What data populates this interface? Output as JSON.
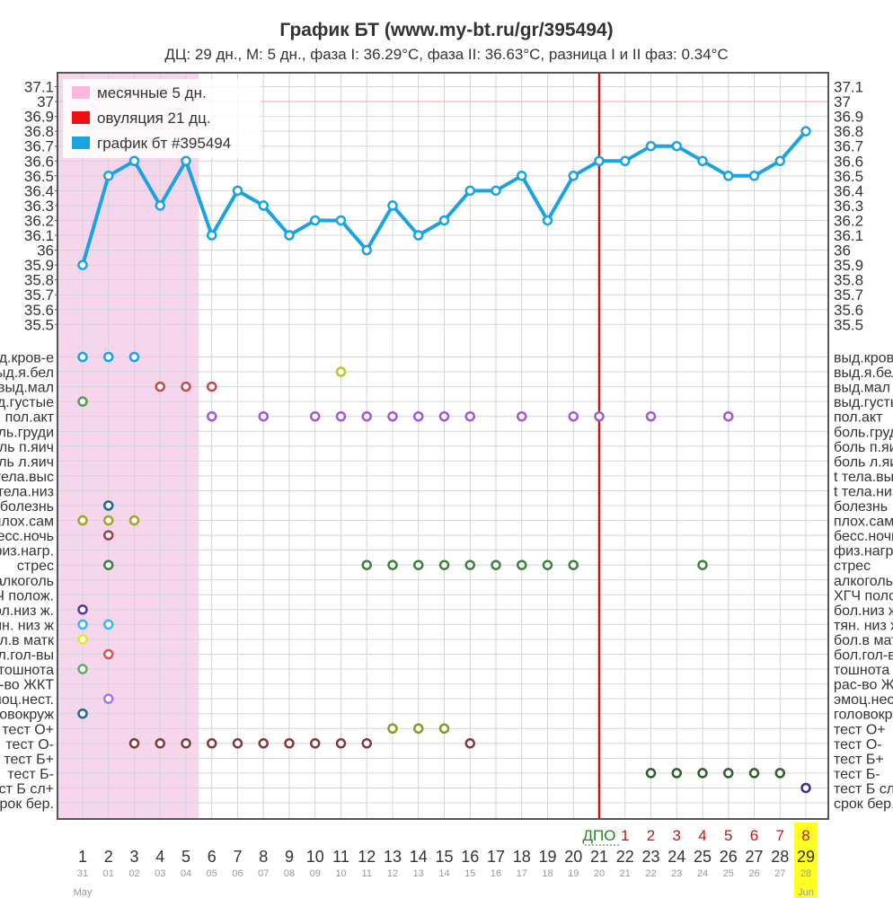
{
  "title": "График БТ (www.my-bt.ru/gr/395494)",
  "subtitle": "ДЦ: 29 дн., М: 5 дн., фаза I: 36.29°C, фаза II: 36.63°C, разница I и II фаз: 0.34°C",
  "chart_data": {
    "type": "line",
    "temp_ticks": [
      "37.1",
      "37",
      "36.9",
      "36.8",
      "36.7",
      "36.6",
      "36.5",
      "36.4",
      "36.3",
      "36.2",
      "36.1",
      "36",
      "35.9",
      "35.8",
      "35.7",
      "35.6",
      "35.5"
    ],
    "ylim": [
      35.5,
      37.1
    ],
    "cycle_days": [
      1,
      2,
      3,
      4,
      5,
      6,
      7,
      8,
      9,
      10,
      11,
      12,
      13,
      14,
      15,
      16,
      17,
      18,
      19,
      20,
      21,
      22,
      23,
      24,
      25,
      26,
      27,
      28,
      29
    ],
    "dates": [
      "31",
      "01",
      "02",
      "03",
      "04",
      "05",
      "06",
      "07",
      "08",
      "09",
      "10",
      "11",
      "12",
      "13",
      "14",
      "15",
      "16",
      "17",
      "18",
      "19",
      "20",
      "21",
      "22",
      "23",
      "24",
      "25",
      "26",
      "27",
      "28"
    ],
    "month_labels": [
      {
        "day": 1,
        "label": "May"
      },
      {
        "day": 29,
        "label": "Jun"
      }
    ],
    "dpo_label": "ДПО",
    "dpo_values": [
      1,
      2,
      3,
      4,
      5,
      6,
      7,
      8
    ],
    "menstruation_days": 5,
    "ovulation_day": 21,
    "highlight_day": 29,
    "coverline": 37.0,
    "legend": [
      {
        "label": "месячные 5 дн.",
        "color": "#ffb6e0"
      },
      {
        "label": "овуляция 21 дц.",
        "color": "#ee1111"
      },
      {
        "label": "график бт #395494",
        "color": "#1aa3e0"
      }
    ],
    "series": [
      {
        "name": "график бт #395494",
        "values": [
          35.9,
          36.5,
          36.6,
          36.3,
          36.6,
          36.1,
          36.4,
          36.3,
          36.1,
          36.2,
          36.2,
          36.0,
          36.3,
          36.1,
          36.2,
          36.4,
          36.4,
          36.5,
          36.2,
          36.5,
          36.6,
          36.6,
          36.7,
          36.7,
          36.6,
          36.5,
          36.5,
          36.6,
          36.8
        ]
      }
    ],
    "symptoms_left": [
      "выд.кров-е",
      "выд.я.бел",
      "выд.мал",
      "выд.густые",
      "пол.акт",
      "боль.груди",
      "боль п.яич",
      "боль л.яич",
      "t тела.выс",
      "t тела.низ",
      "болезнь",
      "плох.сам",
      "бесс.ночь",
      "физ.нагр.",
      "стрес",
      "алкоголь",
      "ХГЧ полож.",
      "бол.низ ж.",
      "тян. низ ж",
      "бол.в матк",
      "бол.гол-вы",
      "тошнота",
      "рас-во ЖКТ",
      "эмоц.нест.",
      "головокруж",
      "тест О+",
      "тест О-",
      "тест Б+",
      "тест Б-",
      "тест Б сл+",
      "срок бер."
    ],
    "symptoms_right": [
      "выд.кров-е",
      "выд.я.бел",
      "выд.мал",
      "выд.густые",
      "пол.акт",
      "боль.груди",
      "боль п.яич",
      "боль л.яич",
      "t тела.выс",
      "t тела.низ",
      "болезнь",
      "плох.сам",
      "бесс.ночь",
      "физ.нагр.",
      "стрес",
      "алкоголь",
      "ХГЧ полож.",
      "бол.низ ж.",
      "тян. низ ж",
      "бол.в матк",
      "бол.гол-вы",
      "тошнота",
      "рас-во ЖКТ",
      "эмоц.нест.",
      "головокруж",
      "тест О+",
      "тест О-",
      "тест Б+",
      "тест Б-",
      "тест Б сл+",
      "срок бер."
    ],
    "symptom_marks": [
      {
        "row": 0,
        "days": [
          1,
          2,
          3
        ],
        "color": "#1aa3e0"
      },
      {
        "row": 1,
        "days": [
          11
        ],
        "color": "#bcc42a"
      },
      {
        "row": 2,
        "days": [
          4,
          5,
          6
        ],
        "color": "#c84848"
      },
      {
        "row": 3,
        "days": [
          1
        ],
        "color": "#5a9a48"
      },
      {
        "row": 4,
        "days": [
          6,
          8,
          10,
          11,
          12,
          13,
          14,
          15,
          16,
          18,
          20,
          21,
          23,
          26
        ],
        "color": "#9a58e0"
      },
      {
        "row": 10,
        "days": [
          2
        ],
        "color": "#1a6a94"
      },
      {
        "row": 11,
        "days": [
          1,
          2,
          3
        ],
        "color": "#a4a428"
      },
      {
        "row": 12,
        "days": [
          2
        ],
        "color": "#a04040"
      },
      {
        "row": 14,
        "days": [
          2,
          12,
          13,
          14,
          15,
          16,
          17,
          18,
          19,
          20,
          25
        ],
        "color": "#3e7e3e"
      },
      {
        "row": 17,
        "days": [
          1
        ],
        "color": "#5a30a8"
      },
      {
        "row": 18,
        "days": [
          1,
          2
        ],
        "color": "#3ab8e8"
      },
      {
        "row": 19,
        "days": [
          1
        ],
        "color": "#e8e820"
      },
      {
        "row": 20,
        "days": [
          2
        ],
        "color": "#e05050"
      },
      {
        "row": 21,
        "days": [
          1
        ],
        "color": "#5ab05a"
      },
      {
        "row": 23,
        "days": [
          2
        ],
        "color": "#b070e8"
      },
      {
        "row": 24,
        "days": [
          1
        ],
        "color": "#1a6a94"
      },
      {
        "row": 25,
        "days": [
          13,
          14,
          15
        ],
        "color": "#8a9a28"
      },
      {
        "row": 26,
        "days": [
          3,
          4,
          5,
          6,
          7,
          8,
          9,
          10,
          11,
          12,
          16
        ],
        "color": "#803838"
      },
      {
        "row": 28,
        "days": [
          23,
          24,
          25,
          26,
          27,
          28
        ],
        "color": "#2e5e2e"
      },
      {
        "row": 29,
        "days": [
          29
        ],
        "color": "#4a2a8a"
      }
    ]
  }
}
